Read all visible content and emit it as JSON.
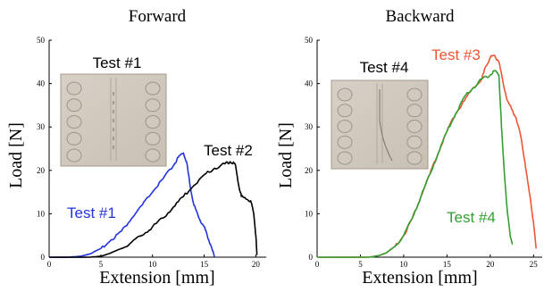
{
  "chart_data": [
    {
      "type": "line",
      "title": "Forward",
      "xlabel": "Extension [mm]",
      "ylabel": "Load [N]",
      "xlim": [
        0,
        21
      ],
      "ylim": [
        0,
        50
      ],
      "xticks": [
        0,
        5,
        10,
        15,
        20
      ],
      "yticks": [
        0,
        10,
        20,
        30,
        40,
        50
      ],
      "grid": false,
      "inset_label": "Test #1",
      "series": [
        {
          "name": "Test #1",
          "color": "#2233dd",
          "x": [
            0,
            2,
            3,
            4,
            5,
            6,
            7,
            8,
            9,
            10,
            11,
            12,
            12.5,
            13,
            13.3,
            13.6,
            14,
            14.5,
            15,
            15.3,
            15.6,
            16
          ],
          "y": [
            0,
            0,
            0.2,
            0.8,
            2,
            4,
            6,
            9,
            12,
            15,
            18,
            21,
            23,
            24,
            22,
            17,
            12,
            9,
            7,
            5,
            3,
            0
          ]
        },
        {
          "name": "Test #2",
          "color": "#000000",
          "x": [
            0,
            4,
            5,
            6,
            7,
            8,
            9,
            10,
            11,
            12,
            13,
            14,
            15,
            16,
            17,
            17.5,
            18,
            18.3,
            18.6,
            19,
            19.5,
            19.8,
            20,
            20.1
          ],
          "y": [
            0,
            0,
            0.2,
            1,
            2,
            3.5,
            5,
            7,
            9,
            11.5,
            14,
            16.5,
            19,
            20.5,
            21.5,
            22,
            21.5,
            17,
            14,
            13.5,
            13,
            10,
            5,
            0.5
          ]
        }
      ]
    },
    {
      "type": "line",
      "title": "Backward",
      "xlabel": "Extension [mm]",
      "ylabel": "Load [N]",
      "xlim": [
        0,
        26
      ],
      "ylim": [
        0,
        50
      ],
      "xticks": [
        0,
        5,
        10,
        15,
        20,
        25
      ],
      "yticks": [
        0,
        10,
        20,
        30,
        40,
        50
      ],
      "grid": false,
      "inset_label": "Test #4",
      "series": [
        {
          "name": "Test #3",
          "color": "#ee5533",
          "x": [
            0,
            6,
            7,
            8,
            9,
            10,
            11,
            12,
            13,
            14,
            15,
            16,
            17,
            18,
            19,
            19.5,
            20,
            20.5,
            21,
            21.5,
            22,
            22.5,
            23,
            23.5,
            24,
            24.5,
            25,
            25.3
          ],
          "y": [
            0,
            0,
            0.3,
            1,
            2.5,
            5,
            9,
            14,
            19,
            24,
            29,
            33,
            36,
            39,
            41,
            44,
            46,
            46.5,
            45,
            40,
            36,
            34,
            32,
            28,
            22,
            15,
            8,
            2
          ]
        },
        {
          "name": "Test #4",
          "color": "#33a033",
          "x": [
            0,
            6,
            7,
            8,
            9,
            10,
            11,
            12,
            13,
            14,
            15,
            16,
            17,
            18,
            19,
            20,
            20.5,
            21,
            21.3,
            21.6,
            22,
            22.3,
            22.6
          ],
          "y": [
            0,
            0,
            0.3,
            1,
            2.5,
            5,
            9,
            14,
            19,
            24,
            29,
            33,
            37,
            39,
            41,
            42,
            43,
            42,
            30,
            20,
            10,
            5,
            3
          ]
        }
      ]
    }
  ]
}
